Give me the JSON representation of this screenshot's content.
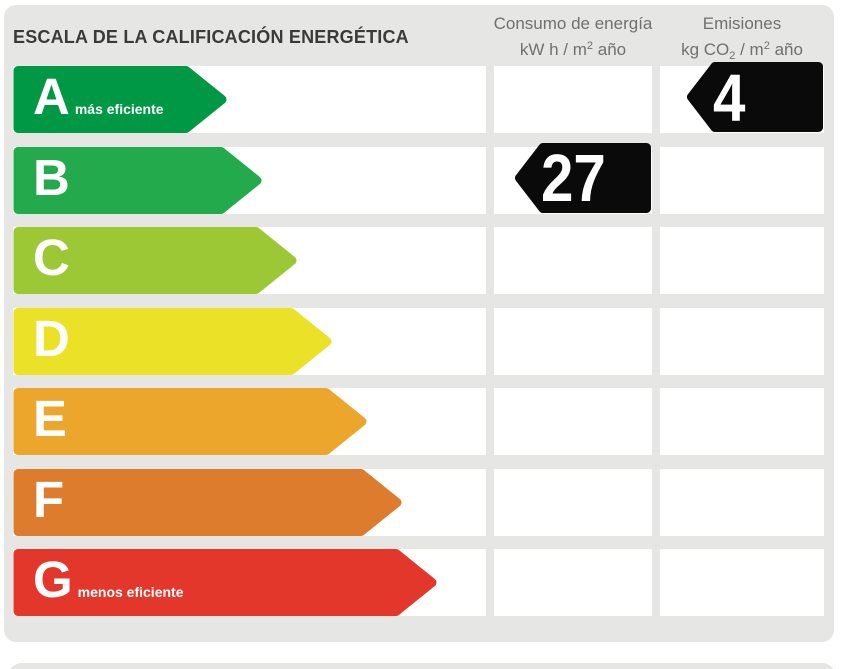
{
  "title": "ESCALA DE LA CALIFICACIÓN ENERGÉTICA",
  "columns": {
    "consumo": {
      "title": "Consumo de energía",
      "unit_p1": "kW h  / m",
      "unit_sup": "2",
      "unit_p2": " año"
    },
    "emisiones": {
      "title": "Emisiones",
      "unit_p1": "kg CO",
      "unit_sub": "2",
      "unit_p2": " / m",
      "unit_sup": "2",
      "unit_p3": " año"
    }
  },
  "scale": {
    "rows": [
      {
        "letter": "A",
        "label": "más eficiente",
        "color": "#009845",
        "arrow_width": 214
      },
      {
        "letter": "B",
        "label": "",
        "color": "#23AA4D",
        "arrow_width": 249
      },
      {
        "letter": "C",
        "label": "",
        "color": "#9BC834",
        "arrow_width": 284
      },
      {
        "letter": "D",
        "label": "",
        "color": "#EBE228",
        "arrow_width": 319
      },
      {
        "letter": "E",
        "label": "",
        "color": "#EBA62B",
        "arrow_width": 354
      },
      {
        "letter": "F",
        "label": "",
        "color": "#DC7C2C",
        "arrow_width": 389
      },
      {
        "letter": "G",
        "label": "menos eficiente",
        "color": "#E4372C",
        "arrow_width": 424
      }
    ]
  },
  "values": {
    "consumo": {
      "value": "27",
      "rating": "B",
      "color": "#0A0A0A",
      "arrow_width": 137
    },
    "emisiones": {
      "value": "4",
      "rating": "A",
      "color": "#0A0A0A",
      "arrow_width": 137
    }
  },
  "chart_data": {
    "type": "bar",
    "title": "ESCALA DE LA CALIFICACIÓN ENERGÉTICA",
    "categories": [
      "A",
      "B",
      "C",
      "D",
      "E",
      "F",
      "G"
    ],
    "values": [
      214,
      249,
      284,
      319,
      354,
      389,
      424
    ],
    "bar_colors": [
      "#009845",
      "#23AA4D",
      "#9BC834",
      "#EBE228",
      "#EBA62B",
      "#DC7C2C",
      "#E4372C"
    ],
    "annotations": {
      "A": "más eficiente",
      "G": "menos eficiente"
    },
    "series": [
      {
        "name": "Consumo de energía (kW h / m2 año)",
        "rating": "B",
        "value": 27
      },
      {
        "name": "Emisiones (kg CO2 / m2 año)",
        "rating": "A",
        "value": 4
      }
    ],
    "legend_position": "none",
    "grid": false
  }
}
